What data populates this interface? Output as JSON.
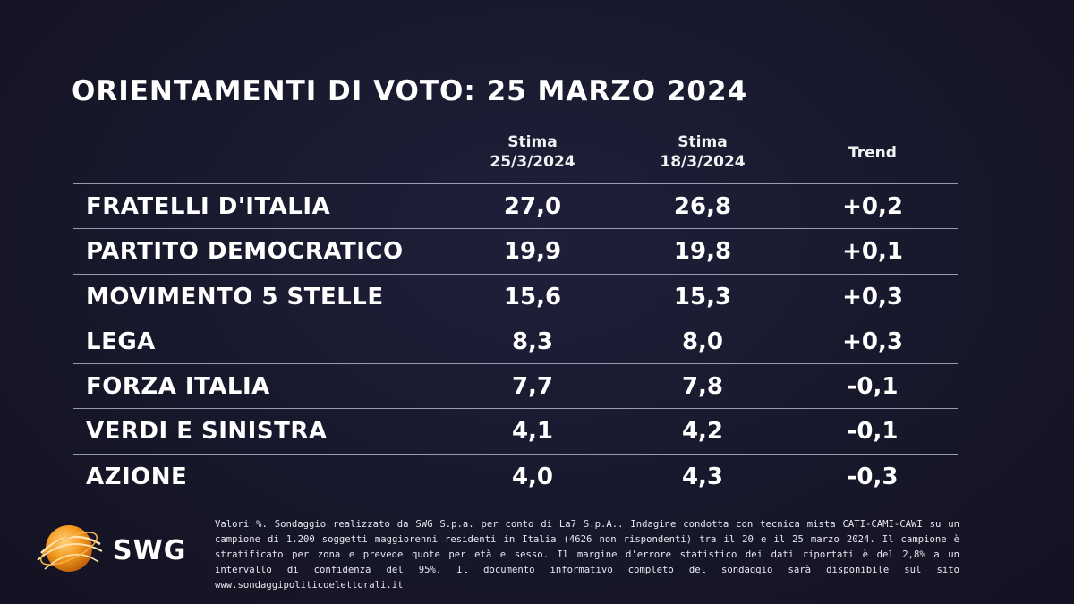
{
  "title": "ORIENTAMENTI DI VOTO: 25 MARZO 2024",
  "columns": {
    "c1_line1": "Stima",
    "c1_line2": "25/3/2024",
    "c2_line1": "Stima",
    "c2_line2": "18/3/2024",
    "c3": "Trend"
  },
  "chart_data": {
    "type": "table",
    "title": "ORIENTAMENTI DI VOTO: 25 MARZO 2024",
    "columns": [
      "Stima 25/3/2024",
      "Stima 18/3/2024",
      "Trend"
    ],
    "rows": [
      {
        "party": "FRATELLI D'ITALIA",
        "current": "27,0",
        "previous": "26,8",
        "trend": "+0,2"
      },
      {
        "party": "PARTITO DEMOCRATICO",
        "current": "19,9",
        "previous": "19,8",
        "trend": "+0,1"
      },
      {
        "party": "MOVIMENTO 5 STELLE",
        "current": "15,6",
        "previous": "15,3",
        "trend": "+0,3"
      },
      {
        "party": "LEGA",
        "current": "8,3",
        "previous": "8,0",
        "trend": "+0,3"
      },
      {
        "party": "FORZA ITALIA",
        "current": "7,7",
        "previous": "7,8",
        "trend": "-0,1"
      },
      {
        "party": "VERDI E SINISTRA",
        "current": "4,1",
        "previous": "4,2",
        "trend": "-0,1"
      },
      {
        "party": "AZIONE",
        "current": "4,0",
        "previous": "4,3",
        "trend": "-0,3"
      }
    ]
  },
  "logo": {
    "text": "SWG",
    "icon": "globe-icon",
    "color": "#f39a1e"
  },
  "footnote": "Valori %. Sondaggio realizzato da SWG S.p.a. per conto di La7 S.p.A.. Indagine condotta con tecnica mista CATI-CAMI-CAWI su un campione di 1.200 soggetti maggiorenni residenti in Italia (4626 non rispondenti) tra il 20 e il 25 marzo 2024. Il campione è stratificato per zona e prevede quote per età e sesso. Il margine d'errore statistico dei dati riportati è del 2,8% a un intervallo di confidenza del 95%. Il documento informativo completo del sondaggio sarà disponibile sul sito www.sondaggipoliticoelettorali.it"
}
